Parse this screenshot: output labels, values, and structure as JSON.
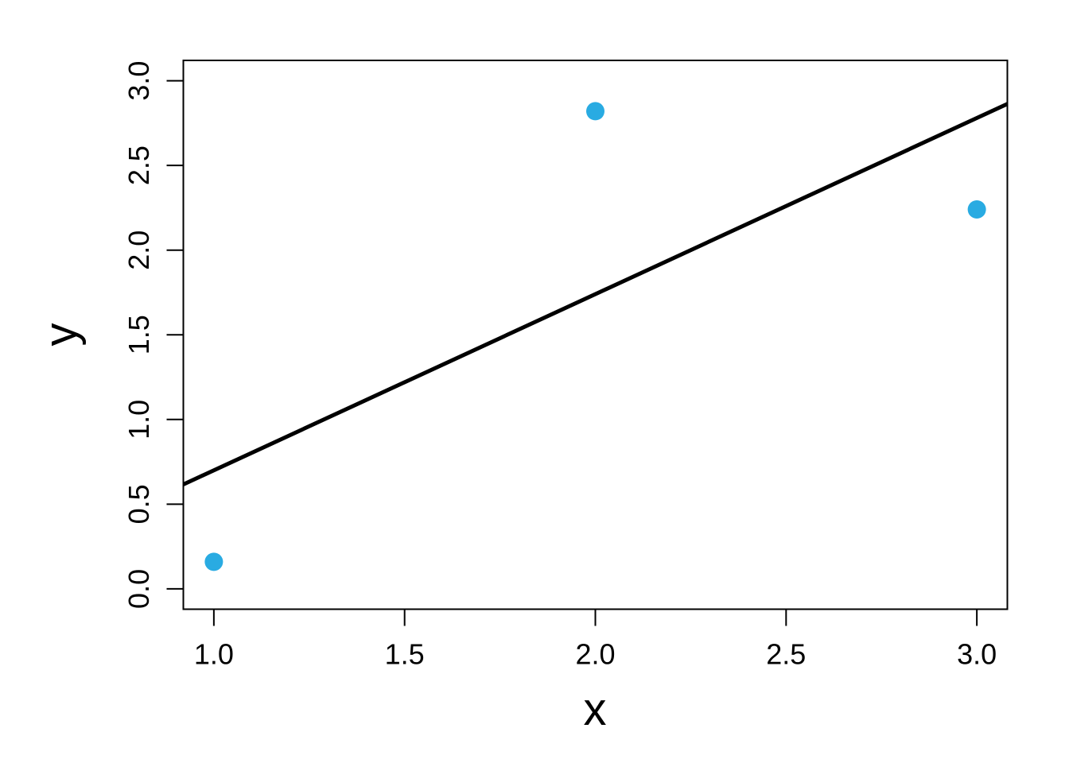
{
  "chart_data": {
    "type": "scatter",
    "title": "",
    "xlabel": "x",
    "ylabel": "y",
    "points": {
      "x": [
        1.0,
        2.0,
        3.0
      ],
      "y": [
        0.16,
        2.82,
        2.24
      ]
    },
    "fit_line": {
      "slope": 1.04,
      "intercept": -0.34
    },
    "x_ticks": [
      1.0,
      1.5,
      2.0,
      2.5,
      3.0
    ],
    "y_ticks": [
      0.0,
      0.5,
      1.0,
      1.5,
      2.0,
      2.5,
      3.0
    ],
    "xlim": [
      0.92,
      3.08
    ],
    "ylim": [
      -0.12,
      3.12
    ],
    "tick_label_decimals": 1,
    "grid": "off",
    "legend": "none",
    "point_color": "#29ABE2",
    "line_color": "#000000",
    "axis_color": "#000000",
    "background_color": "#FFFFFF"
  }
}
